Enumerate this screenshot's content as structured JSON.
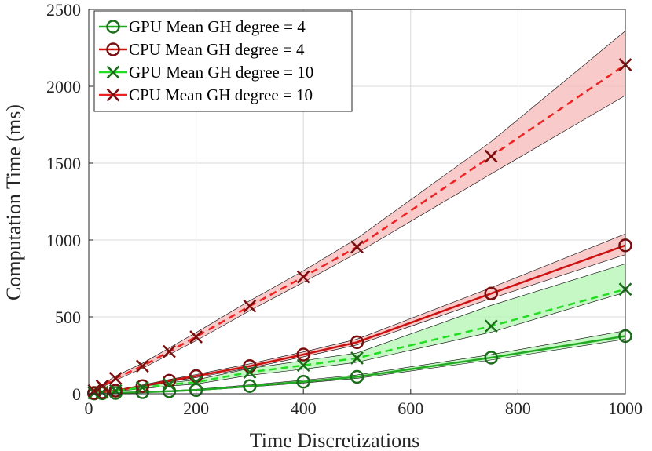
{
  "chart_data": {
    "type": "line",
    "title": "",
    "xlabel": "Time Discretizations",
    "ylabel": "Computation Time (ms)",
    "xlim": [
      0,
      1000
    ],
    "ylim": [
      0,
      2500
    ],
    "xticks": [
      0,
      200,
      400,
      600,
      800,
      1000
    ],
    "yticks": [
      0,
      500,
      1000,
      1500,
      2000,
      2500
    ],
    "grid": true,
    "legend_position": "top-left",
    "x": [
      10,
      25,
      50,
      100,
      150,
      200,
      300,
      400,
      500,
      750,
      1000
    ],
    "series": [
      {
        "name": "GPU Mean GH degree = 4",
        "color": "#22aa22",
        "fill": "#b3f5b3",
        "marker": "circle",
        "line": "solid",
        "values": [
          2,
          3,
          5,
          10,
          16,
          24,
          50,
          78,
          110,
          235,
          375
        ],
        "lower": [
          1,
          2,
          4,
          8,
          13,
          20,
          44,
          70,
          100,
          220,
          355
        ],
        "upper": [
          3,
          5,
          7,
          13,
          20,
          29,
          58,
          88,
          122,
          255,
          410
        ]
      },
      {
        "name": "CPU Mean GH degree = 4",
        "color": "#cc1111",
        "fill": "#f5b8b8",
        "marker": "circle",
        "line": "solid",
        "values": [
          5,
          10,
          20,
          50,
          85,
          115,
          180,
          255,
          335,
          652,
          965
        ],
        "lower": [
          4,
          8,
          17,
          44,
          78,
          105,
          168,
          240,
          318,
          620,
          905
        ],
        "upper": [
          7,
          13,
          24,
          57,
          93,
          125,
          195,
          272,
          355,
          690,
          1040
        ]
      },
      {
        "name": "GPU Mean GH degree = 10",
        "color": "#22dd22",
        "fill": "#b3f5b3",
        "marker": "x",
        "line": "dashed",
        "values": [
          5,
          10,
          20,
          40,
          60,
          75,
          140,
          185,
          232,
          440,
          680
        ],
        "lower": [
          4,
          8,
          16,
          33,
          50,
          63,
          120,
          160,
          205,
          400,
          660
        ],
        "upper": [
          7,
          13,
          25,
          48,
          72,
          90,
          165,
          215,
          265,
          575,
          845
        ]
      },
      {
        "name": "CPU Mean GH degree = 10",
        "color": "#ee2222",
        "fill": "#f5b8b8",
        "marker": "x",
        "line": "dashed",
        "values": [
          20,
          50,
          100,
          180,
          275,
          370,
          570,
          760,
          955,
          1545,
          2140
        ],
        "lower": [
          15,
          42,
          88,
          165,
          255,
          345,
          540,
          725,
          915,
          1430,
          1940
        ],
        "upper": [
          26,
          60,
          115,
          198,
          298,
          398,
          605,
          800,
          1010,
          1640,
          2360
        ]
      }
    ]
  }
}
